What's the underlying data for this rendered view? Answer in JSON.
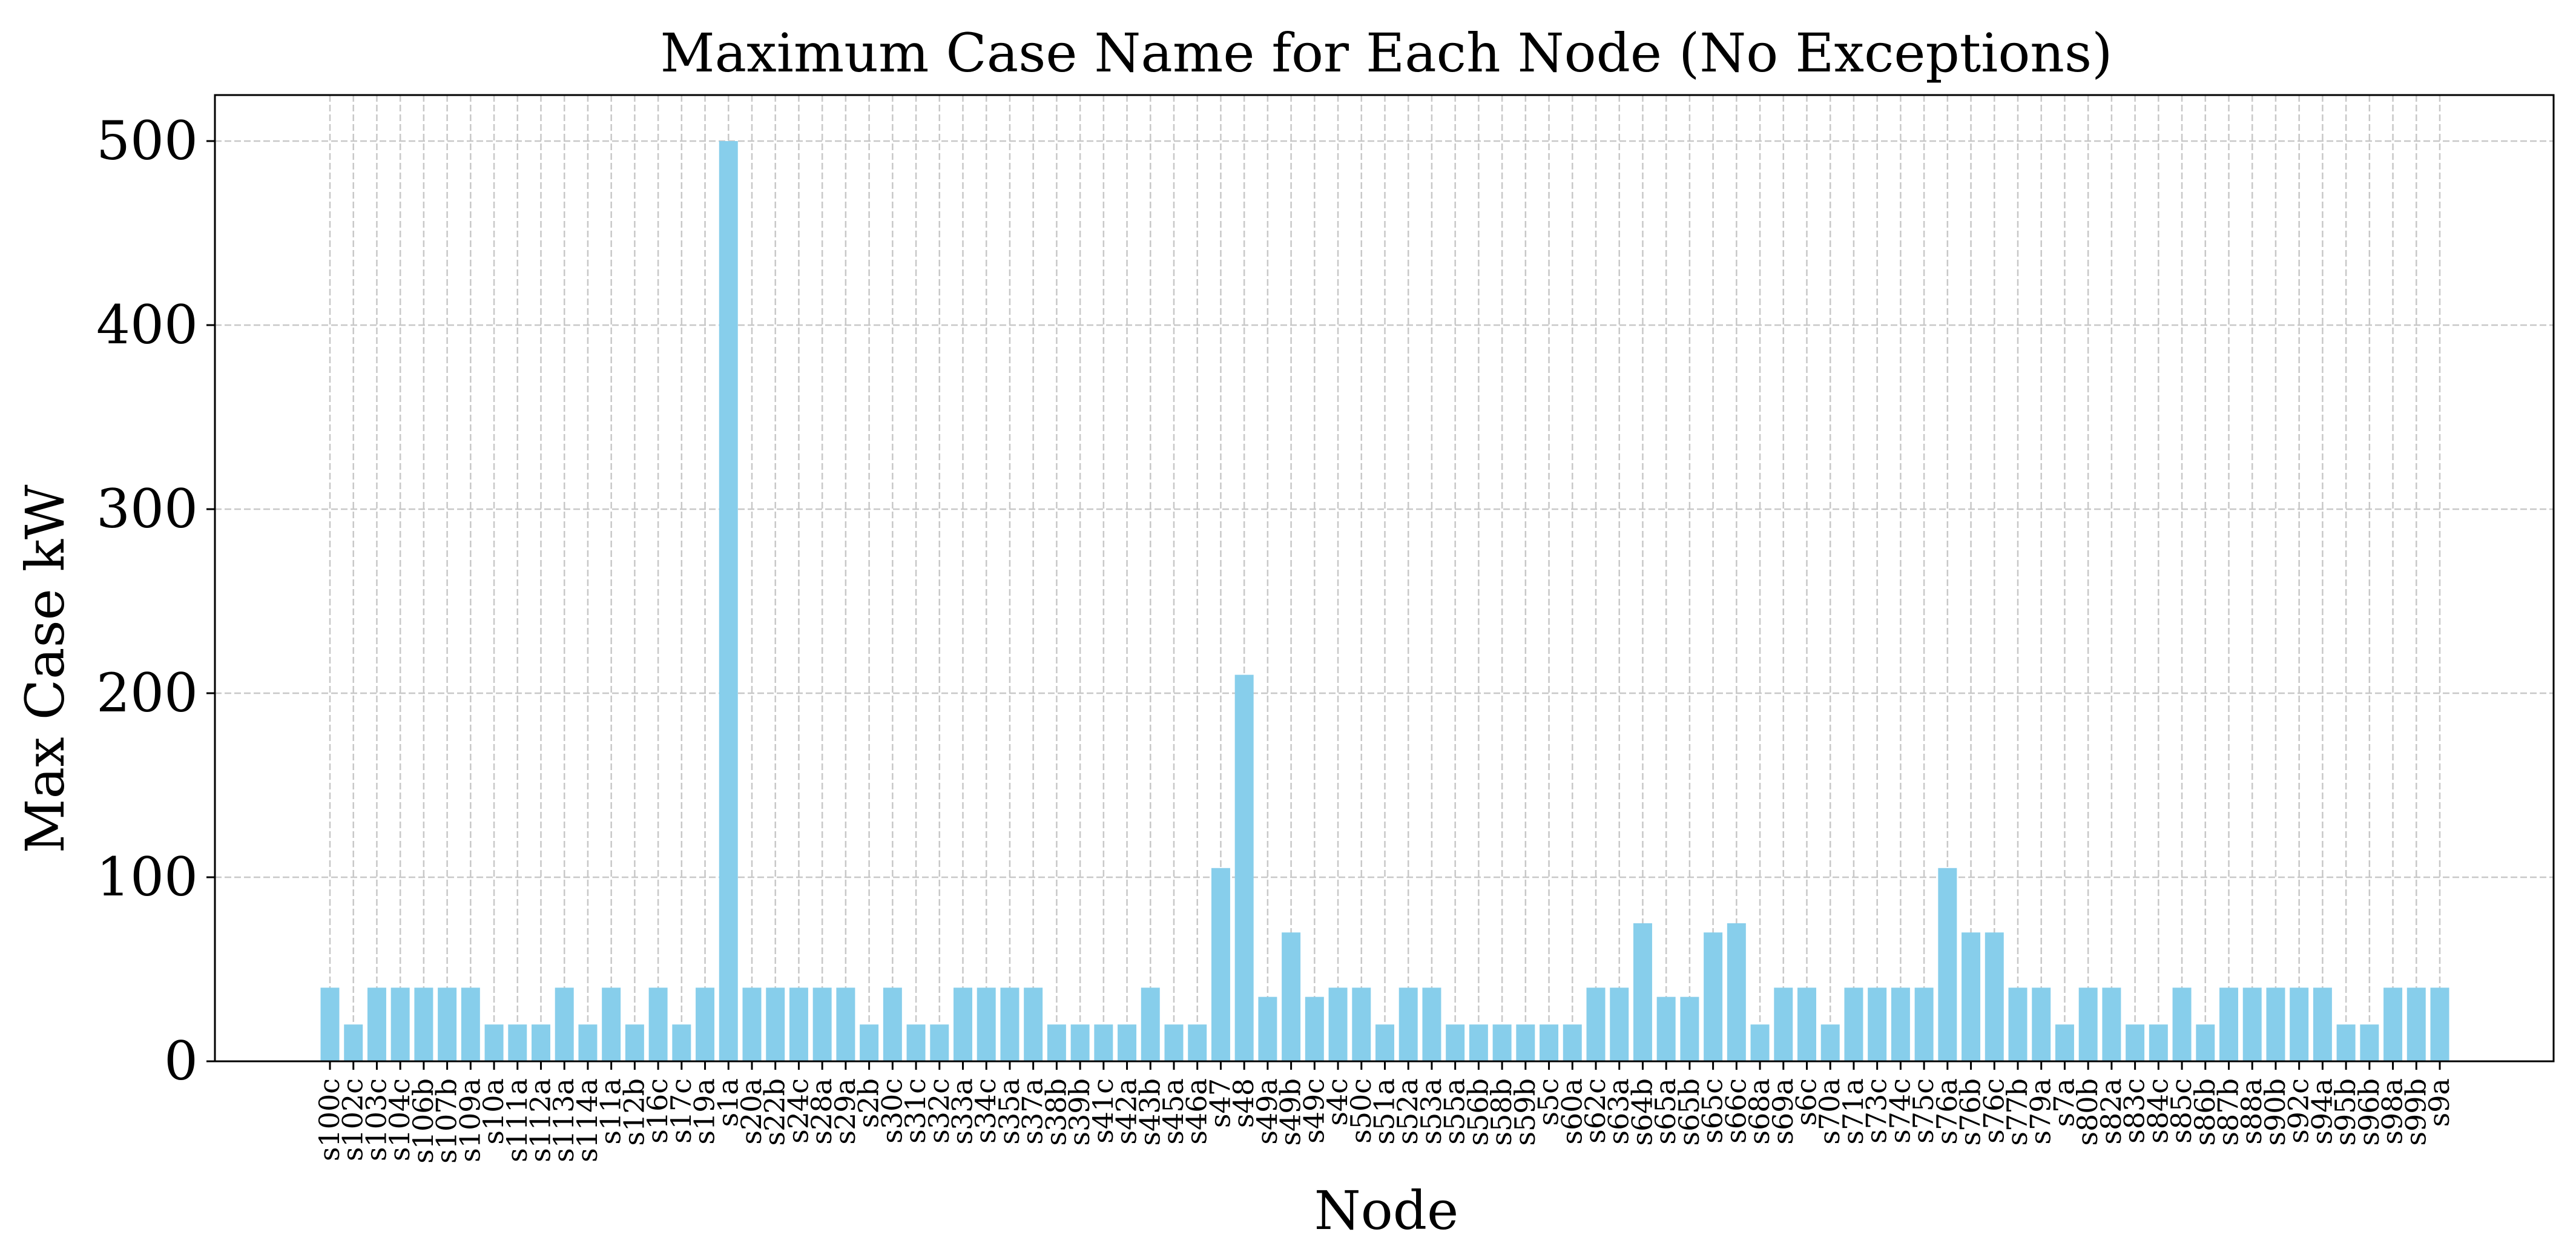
{
  "chart_data": {
    "type": "bar",
    "title": "Maximum Case Name for Each Node (No Exceptions)",
    "xlabel": "Node",
    "ylabel": "Max Case kW",
    "ylim": [
      0,
      525
    ],
    "yticks": [
      0,
      100,
      200,
      300,
      400,
      500
    ],
    "grid": true,
    "legend": "none",
    "bar_color": "#87CEEB",
    "grid_color": "#c8c8c8",
    "categories": [
      "s100c",
      "s102c",
      "s103c",
      "s104c",
      "s106b",
      "s107b",
      "s109a",
      "s10a",
      "s111a",
      "s112a",
      "s113a",
      "s114a",
      "s11a",
      "s12b",
      "s16c",
      "s17c",
      "s19a",
      "s1a",
      "s20a",
      "s22b",
      "s24c",
      "s28a",
      "s29a",
      "s2b",
      "s30c",
      "s31c",
      "s32c",
      "s33a",
      "s34c",
      "s35a",
      "s37a",
      "s38b",
      "s39b",
      "s41c",
      "s42a",
      "s43b",
      "s45a",
      "s46a",
      "s47",
      "s48",
      "s49a",
      "s49b",
      "s49c",
      "s4c",
      "s50c",
      "s51a",
      "s52a",
      "s53a",
      "s55a",
      "s56b",
      "s58b",
      "s59b",
      "s5c",
      "s60a",
      "s62c",
      "s63a",
      "s64b",
      "s65a",
      "s65b",
      "s65c",
      "s66c",
      "s68a",
      "s69a",
      "s6c",
      "s70a",
      "s71a",
      "s73c",
      "s74c",
      "s75c",
      "s76a",
      "s76b",
      "s76c",
      "s77b",
      "s79a",
      "s7a",
      "s80b",
      "s82a",
      "s83c",
      "s84c",
      "s85c",
      "s86b",
      "s87b",
      "s88a",
      "s90b",
      "s92c",
      "s94a",
      "s95b",
      "s96b",
      "s98a",
      "s99b",
      "s9a"
    ],
    "values": [
      40,
      20,
      40,
      40,
      40,
      40,
      40,
      20,
      20,
      20,
      40,
      20,
      40,
      20,
      40,
      20,
      40,
      500,
      40,
      40,
      40,
      40,
      40,
      20,
      40,
      20,
      20,
      40,
      40,
      40,
      40,
      20,
      20,
      20,
      20,
      40,
      20,
      20,
      105,
      210,
      35,
      70,
      35,
      40,
      40,
      20,
      40,
      40,
      20,
      20,
      20,
      20,
      20,
      20,
      40,
      40,
      75,
      35,
      35,
      70,
      75,
      20,
      40,
      40,
      20,
      40,
      40,
      40,
      40,
      105,
      70,
      70,
      40,
      40,
      20,
      40,
      40,
      20,
      20,
      40,
      20,
      40,
      40,
      40,
      40,
      40,
      20,
      20,
      40,
      40,
      40
    ]
  }
}
